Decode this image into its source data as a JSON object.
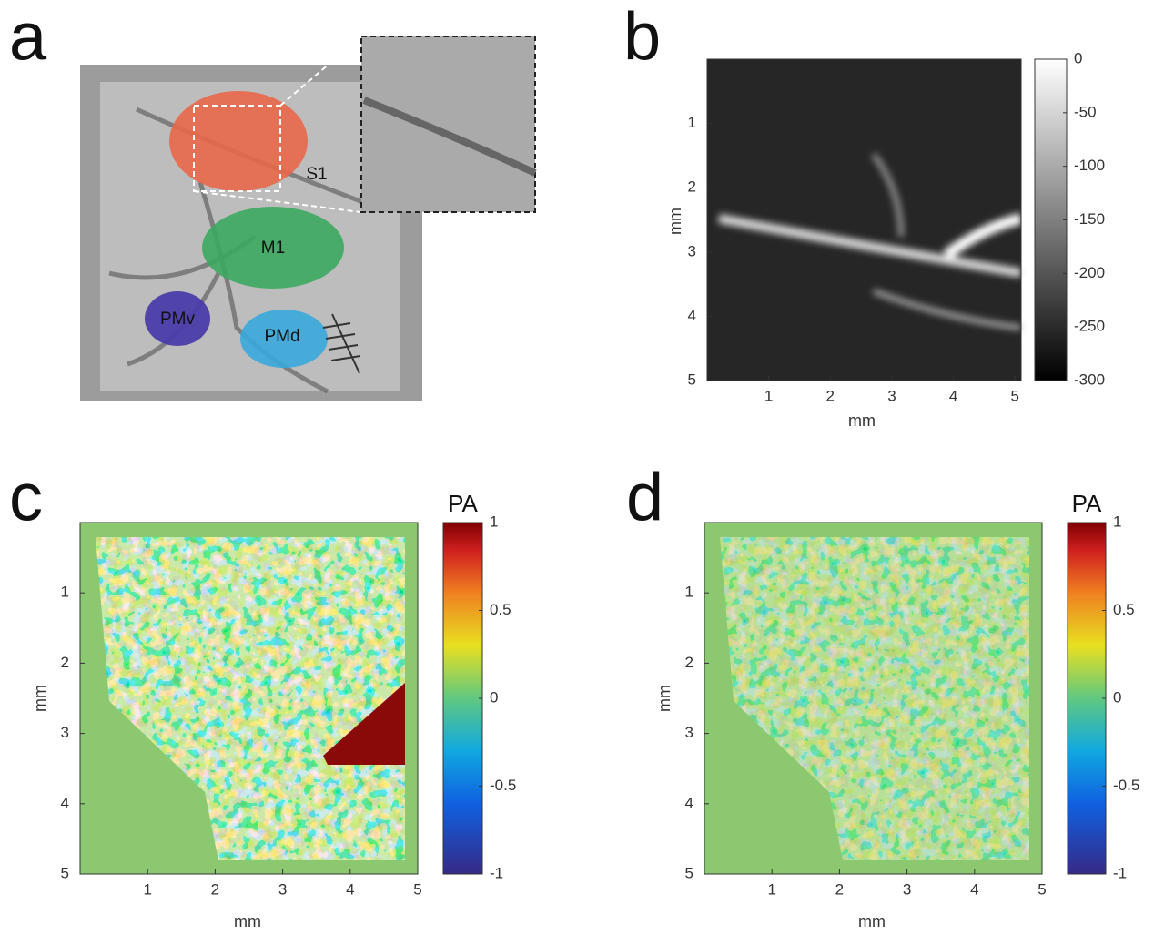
{
  "panels": [
    {
      "label": "a",
      "regions": [
        "S1",
        "M1",
        "PMv",
        "PMd"
      ]
    },
    {
      "label": "b",
      "xlabel": "mm",
      "ylabel": "mm",
      "xlim": [
        0,
        5.1
      ],
      "ylim": [
        0,
        5
      ],
      "xticks": [
        1,
        2,
        3,
        4,
        5
      ],
      "yticks": [
        1,
        2,
        3,
        4,
        5
      ],
      "colorbar": {
        "lim": [
          -300,
          0
        ],
        "ticks": [
          0,
          -50,
          -100,
          -150,
          -200,
          -250,
          -300
        ]
      }
    },
    {
      "label": "c",
      "xlabel": "mm",
      "ylabel": "mm",
      "xlim": [
        0,
        5
      ],
      "ylim": [
        0,
        5
      ],
      "xticks": [
        1,
        2,
        3,
        4,
        5
      ],
      "yticks": [
        1,
        2,
        3,
        4,
        5
      ],
      "colorbar": {
        "title": "PA",
        "lim": [
          -1,
          1
        ],
        "ticks": [
          1,
          0.5,
          0,
          -0.5,
          -1
        ]
      }
    },
    {
      "label": "d",
      "xlabel": "mm",
      "ylabel": "mm",
      "xlim": [
        0,
        5
      ],
      "ylim": [
        0,
        5
      ],
      "xticks": [
        1,
        2,
        3,
        4,
        5
      ],
      "yticks": [
        1,
        2,
        3,
        4,
        5
      ],
      "colorbar": {
        "title": "PA",
        "lim": [
          -1,
          1
        ],
        "ticks": [
          1,
          0.5,
          0,
          -0.5,
          -1
        ]
      }
    }
  ]
}
